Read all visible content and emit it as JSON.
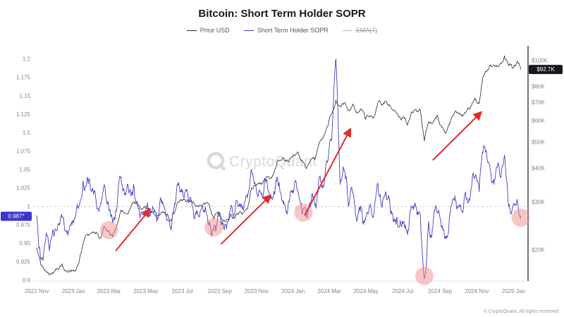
{
  "header": {
    "title": "Bitcoin: Short Term Holder SOPR"
  },
  "legend": [
    {
      "label": "Price USD",
      "color": "#2b2b2b",
      "disabled": false
    },
    {
      "label": "Short Term Holder SOPR",
      "color": "#443fc4",
      "disabled": false
    },
    {
      "label": "EMA(7)",
      "color": "#b5b5bc",
      "disabled": true
    }
  ],
  "watermark": {
    "text": "CryptoQuant",
    "color": "#d9d9de"
  },
  "footer": {
    "text": "© CryptoQuant. All rights reserved"
  },
  "chart_data": {
    "type": "line",
    "title": "Bitcoin: Short Term Holder SOPR",
    "x_unit": "date",
    "x_range": [
      "2022-10-26",
      "2025-01-24"
    ],
    "x": [
      "2022-11-01",
      "2022-11-08",
      "2022-11-15",
      "2022-11-22",
      "2022-11-29",
      "2022-12-06",
      "2022-12-13",
      "2022-12-20",
      "2022-12-27",
      "2023-01-03",
      "2023-01-10",
      "2023-01-17",
      "2023-01-24",
      "2023-01-31",
      "2023-02-07",
      "2023-02-14",
      "2023-02-21",
      "2023-02-28",
      "2023-03-07",
      "2023-03-14",
      "2023-03-21",
      "2023-03-28",
      "2023-04-04",
      "2023-04-11",
      "2023-04-18",
      "2023-04-25",
      "2023-05-02",
      "2023-05-09",
      "2023-05-16",
      "2023-05-23",
      "2023-05-30",
      "2023-06-06",
      "2023-06-13",
      "2023-06-20",
      "2023-06-27",
      "2023-07-04",
      "2023-07-11",
      "2023-07-18",
      "2023-07-25",
      "2023-08-01",
      "2023-08-08",
      "2023-08-15",
      "2023-08-22",
      "2023-08-29",
      "2023-09-05",
      "2023-09-12",
      "2023-09-19",
      "2023-09-26",
      "2023-10-03",
      "2023-10-10",
      "2023-10-17",
      "2023-10-24",
      "2023-10-31",
      "2023-11-07",
      "2023-11-14",
      "2023-11-21",
      "2023-11-28",
      "2023-12-05",
      "2023-12-12",
      "2023-12-19",
      "2023-12-26",
      "2024-01-02",
      "2024-01-09",
      "2024-01-16",
      "2024-01-23",
      "2024-01-30",
      "2024-02-06",
      "2024-02-13",
      "2024-02-20",
      "2024-02-27",
      "2024-03-05",
      "2024-03-12",
      "2024-03-19",
      "2024-03-26",
      "2024-04-02",
      "2024-04-09",
      "2024-04-16",
      "2024-04-23",
      "2024-04-30",
      "2024-05-07",
      "2024-05-14",
      "2024-05-21",
      "2024-05-28",
      "2024-06-04",
      "2024-06-11",
      "2024-06-18",
      "2024-06-25",
      "2024-07-02",
      "2024-07-09",
      "2024-07-16",
      "2024-07-23",
      "2024-07-30",
      "2024-08-06",
      "2024-08-13",
      "2024-08-20",
      "2024-08-27",
      "2024-09-03",
      "2024-09-10",
      "2024-09-17",
      "2024-09-24",
      "2024-10-01",
      "2024-10-08",
      "2024-10-15",
      "2024-10-22",
      "2024-10-29",
      "2024-11-05",
      "2024-11-12",
      "2024-11-19",
      "2024-11-26",
      "2024-12-03",
      "2024-12-10",
      "2024-12-17",
      "2024-12-24",
      "2024-12-31",
      "2025-01-07",
      "2025-01-13"
    ],
    "series": [
      {
        "name": "Price USD",
        "axis": "right",
        "unit": "USD thousands",
        "color": "#2b2b2b",
        "values": [
          20.4,
          17.6,
          16.9,
          16.2,
          16.5,
          17.0,
          17.8,
          16.8,
          16.6,
          16.8,
          17.9,
          21.1,
          22.9,
          23.1,
          23.2,
          22.1,
          24.5,
          23.5,
          22.4,
          24.7,
          28.1,
          27.3,
          28.2,
          30.2,
          29.4,
          28.3,
          28.7,
          27.6,
          27.0,
          26.8,
          27.7,
          27.2,
          25.9,
          28.3,
          30.5,
          30.8,
          30.4,
          30.0,
          29.2,
          29.2,
          29.6,
          29.2,
          26.0,
          27.7,
          25.8,
          25.9,
          27.2,
          26.2,
          27.4,
          27.4,
          28.5,
          33.9,
          34.5,
          35.0,
          36.5,
          37.4,
          37.8,
          41.9,
          42.9,
          42.6,
          43.0,
          45.0,
          46.1,
          42.8,
          39.9,
          43.1,
          43.1,
          49.7,
          52.3,
          57.0,
          63.8,
          71.5,
          67.9,
          69.9,
          65.5,
          69.1,
          63.8,
          66.4,
          60.6,
          62.3,
          61.6,
          70.1,
          68.3,
          70.5,
          67.3,
          65.1,
          61.8,
          62.0,
          57.7,
          64.8,
          66.0,
          66.2,
          50.5,
          59.3,
          59.0,
          62.9,
          57.5,
          53.8,
          58.2,
          63.2,
          63.8,
          62.2,
          65.1,
          67.4,
          72.7,
          69.4,
          88.0,
          92.3,
          94.9,
          95.9,
          97.4,
          104.0,
          95.8,
          93.5,
          99.0,
          92.7
        ]
      },
      {
        "name": "Short Term Holder SOPR",
        "axis": "left",
        "color": "#443fc4",
        "values": [
          0.988,
          0.928,
          0.952,
          0.94,
          0.962,
          0.975,
          0.985,
          0.968,
          0.975,
          0.985,
          1.0,
          1.035,
          1.04,
          1.02,
          1.012,
          1.0,
          1.03,
          1.002,
          0.978,
          0.998,
          1.04,
          1.018,
          1.02,
          1.03,
          1.0,
          0.99,
          1.0,
          0.99,
          0.995,
          0.99,
          1.005,
          0.982,
          0.972,
          1.01,
          1.02,
          1.012,
          1.005,
          1.0,
          0.995,
          0.996,
          1.0,
          0.98,
          0.968,
          0.99,
          0.975,
          0.97,
          0.995,
          0.99,
          1.0,
          0.995,
          1.012,
          1.05,
          1.028,
          1.02,
          1.03,
          1.02,
          1.012,
          1.04,
          1.018,
          1.0,
          1.01,
          1.022,
          1.02,
          0.99,
          0.987,
          1.0,
          1.002,
          1.04,
          1.028,
          1.06,
          1.09,
          1.2,
          1.03,
          1.05,
          1.0,
          1.02,
          0.98,
          1.0,
          0.982,
          1.0,
          0.99,
          1.03,
          1.0,
          1.012,
          0.99,
          0.98,
          0.972,
          0.98,
          0.962,
          1.0,
          1.0,
          0.99,
          0.902,
          0.98,
          0.972,
          0.992,
          0.972,
          0.96,
          0.99,
          1.01,
          1.0,
          0.992,
          1.01,
          1.02,
          1.04,
          1.02,
          1.08,
          1.06,
          1.032,
          1.05,
          1.04,
          1.07,
          1.0,
          1.0,
          1.01,
          0.987
        ]
      }
    ],
    "left_axis": {
      "label": "Short Term Holder SOPR",
      "scale": "linear",
      "min": 0.9,
      "max": 1.2,
      "ticks": [
        {
          "v": 0.9,
          "label": "0.9"
        },
        {
          "v": 0.925,
          "label": "0.925"
        },
        {
          "v": 0.95,
          "label": "0.95"
        },
        {
          "v": 0.975,
          "label": "0.975"
        },
        {
          "v": 1,
          "label": "1"
        },
        {
          "v": 1.025,
          "label": "1.025"
        },
        {
          "v": 1.05,
          "label": "1.05"
        },
        {
          "v": 1.075,
          "label": "1.075"
        },
        {
          "v": 1.1,
          "label": "1.1"
        },
        {
          "v": 1.125,
          "label": "1.125"
        },
        {
          "v": 1.15,
          "label": "1.15"
        },
        {
          "v": 1.175,
          "label": "1.175"
        },
        {
          "v": 1.2,
          "label": "1.2"
        }
      ],
      "current_badge": {
        "text": "0.987*",
        "value": 0.987,
        "color": "#3a35cf",
        "text_color": "#ffffff"
      }
    },
    "right_axis": {
      "label": "Price USD",
      "scale": "log",
      "ticks": [
        {
          "v": 20,
          "label": "$20K"
        },
        {
          "v": 30,
          "label": "$30K"
        },
        {
          "v": 40,
          "label": "$40K"
        },
        {
          "v": 50,
          "label": "$50K"
        },
        {
          "v": 60,
          "label": "$60K"
        },
        {
          "v": 70,
          "label": "$70K"
        },
        {
          "v": 80,
          "label": "$80K"
        },
        {
          "v": 100,
          "label": "$100K"
        }
      ],
      "current_badge": {
        "text": "$92.7K",
        "value": 92.7,
        "color": "#17171f",
        "text_color": "#ffffff"
      }
    },
    "x_ticks": [
      {
        "date": "2022-11-01",
        "label": "2022 Nov"
      },
      {
        "date": "2023-01-01",
        "label": "2023 Jan"
      },
      {
        "date": "2023-03-01",
        "label": "2023 Mar"
      },
      {
        "date": "2023-05-01",
        "label": "2023 May"
      },
      {
        "date": "2023-07-01",
        "label": "2023 Jul"
      },
      {
        "date": "2023-09-01",
        "label": "2023 Sep"
      },
      {
        "date": "2023-11-01",
        "label": "2023 Nov"
      },
      {
        "date": "2024-01-01",
        "label": "2024 Jan"
      },
      {
        "date": "2024-03-01",
        "label": "2024 Mar"
      },
      {
        "date": "2024-05-01",
        "label": "2024 May"
      },
      {
        "date": "2024-07-01",
        "label": "2024 Jul"
      },
      {
        "date": "2024-09-01",
        "label": "2024 Sep"
      },
      {
        "date": "2024-11-01",
        "label": "2024 Nov"
      },
      {
        "date": "2025-01-01",
        "label": "2025 Jan"
      }
    ],
    "baseline": {
      "value": 1.0,
      "style": "dashed",
      "color": "#c9c9d2"
    },
    "annotations": {
      "color": "#e02b2b",
      "circle_fill": "#f08f8f",
      "circle_opacity": 0.5,
      "circles": [
        {
          "date": "2023-03-01",
          "sopr": 0.968
        },
        {
          "date": "2023-08-22",
          "sopr": 0.972
        },
        {
          "date": "2024-01-18",
          "sopr": 0.992
        },
        {
          "date": "2024-08-06",
          "sopr": 0.906
        },
        {
          "date": "2025-01-13",
          "sopr": 0.985
        }
      ],
      "arrows": [
        {
          "x1": "2023-03-12",
          "y1": 0.94,
          "x2": "2023-05-08",
          "y2": 0.996
        },
        {
          "x1": "2023-09-03",
          "y1": 0.949,
          "x2": "2023-11-24",
          "y2": 1.015
        },
        {
          "x1": "2024-01-20",
          "y1": 0.988,
          "x2": "2024-04-05",
          "y2": 1.105
        },
        {
          "x1": "2024-08-20",
          "y1": 1.063,
          "x2": "2024-11-08",
          "y2": 1.128
        }
      ]
    }
  }
}
